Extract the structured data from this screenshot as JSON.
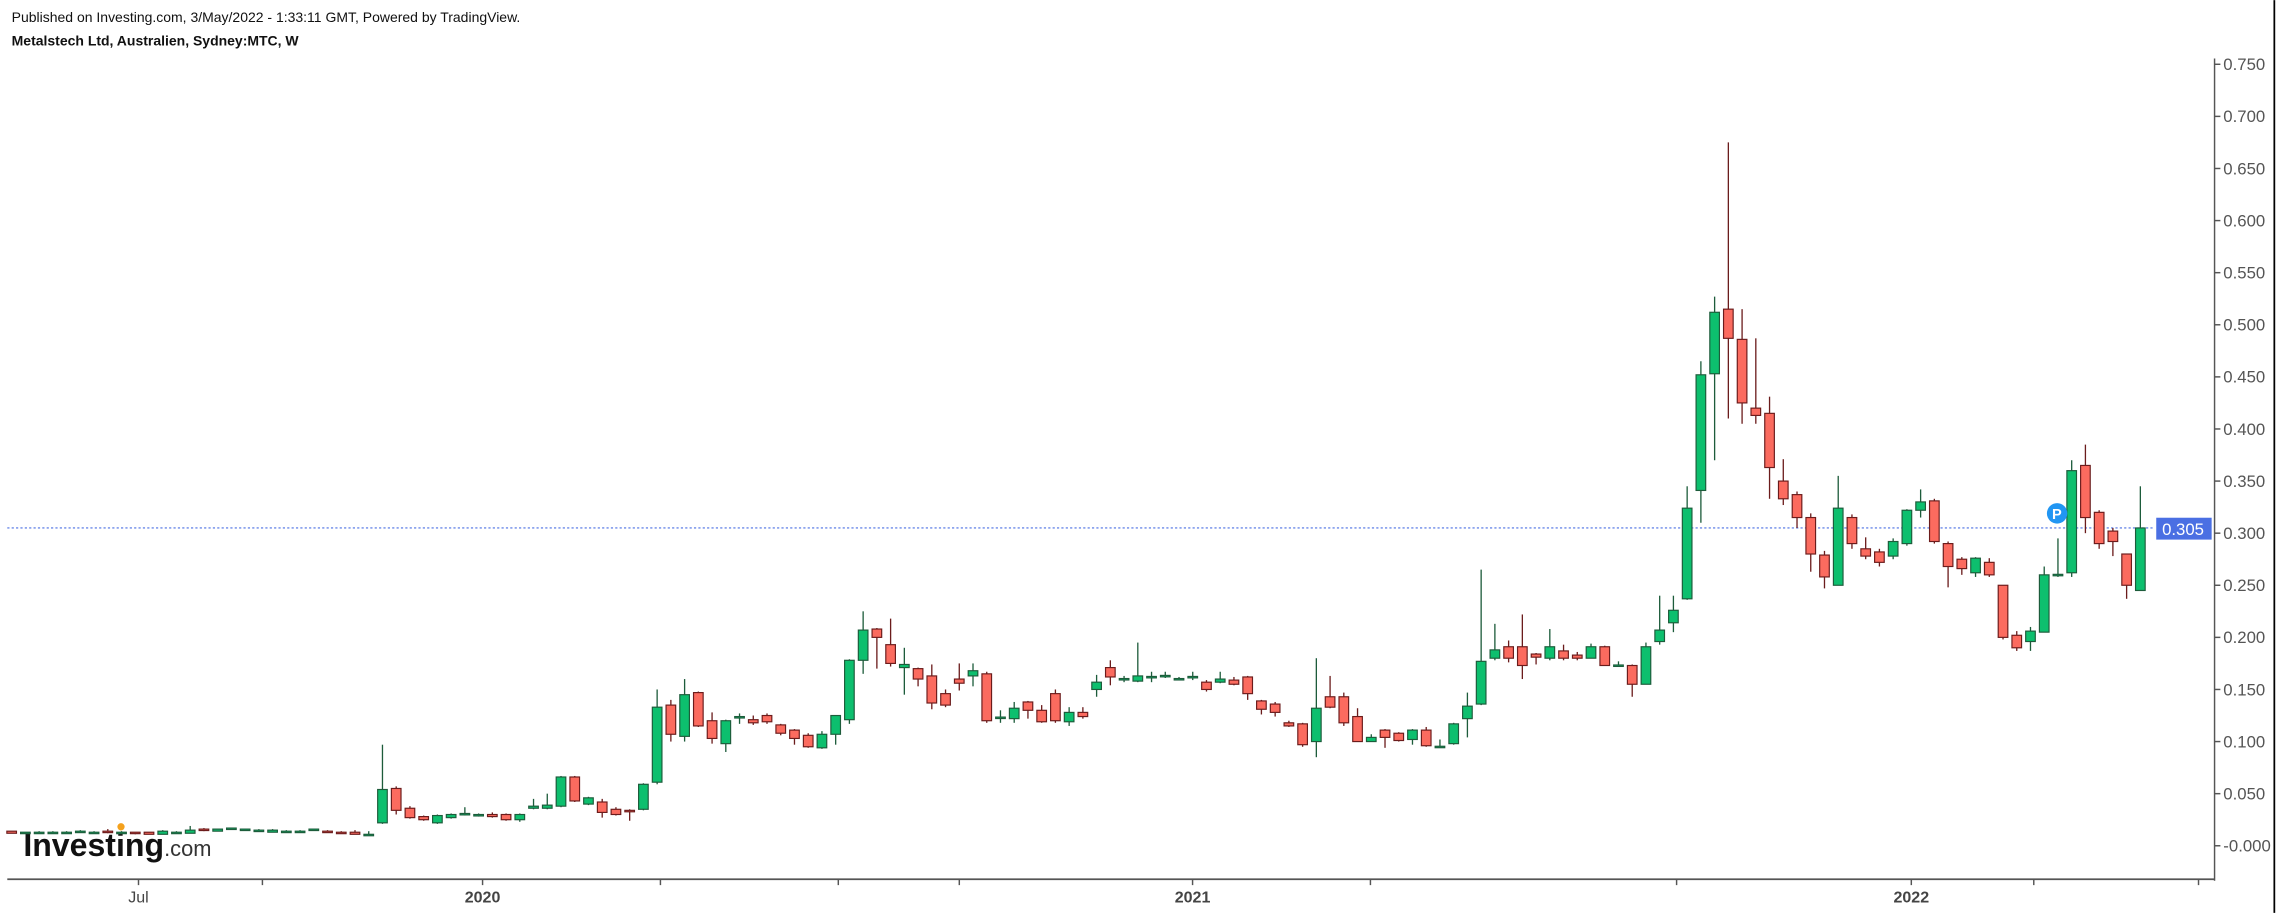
{
  "header": {
    "published": "Published on Investing.com, 3/May/2022 - 1:33:11 GMT, Powered by TradingView.",
    "symbol": "Metalstech Ltd, Australien, Sydney:MTC, W"
  },
  "watermark": {
    "brand": "Investing",
    "suffix": ".com"
  },
  "colors": {
    "up": "#0dbf6e",
    "down": "#fb6b5f",
    "up_border": "#1d5c3b",
    "down_border": "#6b1c1c",
    "last_price_line": "#4a6fe3"
  },
  "chart_data": {
    "type": "candlestick",
    "title": "Metalstech Ltd, Australien, Sydney:MTC, W",
    "interval": "weekly",
    "ylim": [
      -0.02,
      0.755
    ],
    "y_ticks": [
      "0.750",
      "0.700",
      "0.650",
      "0.600",
      "0.550",
      "0.500",
      "0.450",
      "0.400",
      "0.350",
      "0.300",
      "0.250",
      "0.200",
      "0.150",
      "0.100",
      "0.050",
      "-0.000"
    ],
    "x_tick_labels": [
      "Jul",
      "2020",
      "2021",
      "2022"
    ],
    "last_price": 0.305,
    "last_price_label": "0.305",
    "marker_label": "P",
    "grid": false,
    "ohlc": [
      [
        0.014,
        0.014,
        0.012,
        0.012
      ],
      [
        0.013,
        0.013,
        0.013,
        0.013
      ],
      [
        0.013,
        0.014,
        0.013,
        0.013
      ],
      [
        0.013,
        0.014,
        0.012,
        0.013
      ],
      [
        0.013,
        0.014,
        0.013,
        0.013
      ],
      [
        0.013,
        0.015,
        0.013,
        0.014
      ],
      [
        0.013,
        0.014,
        0.012,
        0.013
      ],
      [
        0.014,
        0.016,
        0.012,
        0.013
      ],
      [
        0.013,
        0.014,
        0.012,
        0.013
      ],
      [
        0.013,
        0.013,
        0.011,
        0.012
      ],
      [
        0.013,
        0.013,
        0.011,
        0.011
      ],
      [
        0.011,
        0.015,
        0.011,
        0.014
      ],
      [
        0.013,
        0.014,
        0.013,
        0.013
      ],
      [
        0.012,
        0.019,
        0.012,
        0.015
      ],
      [
        0.016,
        0.017,
        0.014,
        0.015
      ],
      [
        0.014,
        0.016,
        0.014,
        0.016
      ],
      [
        0.016,
        0.017,
        0.016,
        0.017
      ],
      [
        0.015,
        0.016,
        0.015,
        0.016
      ],
      [
        0.015,
        0.016,
        0.015,
        0.015
      ],
      [
        0.013,
        0.016,
        0.013,
        0.015
      ],
      [
        0.014,
        0.015,
        0.014,
        0.014
      ],
      [
        0.014,
        0.015,
        0.013,
        0.014
      ],
      [
        0.015,
        0.016,
        0.015,
        0.016
      ],
      [
        0.014,
        0.015,
        0.013,
        0.013
      ],
      [
        0.013,
        0.014,
        0.012,
        0.012
      ],
      [
        0.013,
        0.015,
        0.011,
        0.011
      ],
      [
        0.011,
        0.014,
        0.01,
        0.011
      ],
      [
        0.022,
        0.097,
        0.021,
        0.054
      ],
      [
        0.055,
        0.057,
        0.03,
        0.034
      ],
      [
        0.036,
        0.038,
        0.026,
        0.027
      ],
      [
        0.028,
        0.029,
        0.024,
        0.025
      ],
      [
        0.022,
        0.03,
        0.021,
        0.029
      ],
      [
        0.027,
        0.031,
        0.026,
        0.03
      ],
      [
        0.03,
        0.037,
        0.029,
        0.031
      ],
      [
        0.029,
        0.031,
        0.028,
        0.03
      ],
      [
        0.03,
        0.032,
        0.027,
        0.028
      ],
      [
        0.03,
        0.031,
        0.024,
        0.025
      ],
      [
        0.025,
        0.031,
        0.023,
        0.03
      ],
      [
        0.036,
        0.045,
        0.035,
        0.038
      ],
      [
        0.036,
        0.05,
        0.035,
        0.039
      ],
      [
        0.038,
        0.067,
        0.037,
        0.066
      ],
      [
        0.066,
        0.067,
        0.042,
        0.043
      ],
      [
        0.04,
        0.047,
        0.039,
        0.046
      ],
      [
        0.042,
        0.045,
        0.027,
        0.032
      ],
      [
        0.035,
        0.037,
        0.029,
        0.03
      ],
      [
        0.034,
        0.035,
        0.024,
        0.033
      ],
      [
        0.035,
        0.06,
        0.034,
        0.059
      ],
      [
        0.061,
        0.15,
        0.059,
        0.133
      ],
      [
        0.135,
        0.14,
        0.1,
        0.107
      ],
      [
        0.105,
        0.16,
        0.1,
        0.145
      ],
      [
        0.147,
        0.148,
        0.114,
        0.115
      ],
      [
        0.12,
        0.128,
        0.098,
        0.103
      ],
      [
        0.098,
        0.121,
        0.09,
        0.12
      ],
      [
        0.123,
        0.127,
        0.117,
        0.124
      ],
      [
        0.121,
        0.125,
        0.116,
        0.118
      ],
      [
        0.125,
        0.127,
        0.117,
        0.119
      ],
      [
        0.116,
        0.117,
        0.106,
        0.108
      ],
      [
        0.111,
        0.112,
        0.097,
        0.103
      ],
      [
        0.106,
        0.108,
        0.094,
        0.095
      ],
      [
        0.094,
        0.11,
        0.093,
        0.107
      ],
      [
        0.107,
        0.125,
        0.097,
        0.125
      ],
      [
        0.121,
        0.179,
        0.117,
        0.178
      ],
      [
        0.178,
        0.225,
        0.165,
        0.207
      ],
      [
        0.208,
        0.209,
        0.17,
        0.2
      ],
      [
        0.193,
        0.218,
        0.172,
        0.175
      ],
      [
        0.171,
        0.19,
        0.145,
        0.174
      ],
      [
        0.17,
        0.171,
        0.153,
        0.16
      ],
      [
        0.163,
        0.174,
        0.131,
        0.137
      ],
      [
        0.146,
        0.15,
        0.133,
        0.135
      ],
      [
        0.16,
        0.175,
        0.149,
        0.156
      ],
      [
        0.163,
        0.175,
        0.153,
        0.168
      ],
      [
        0.165,
        0.167,
        0.118,
        0.12
      ],
      [
        0.123,
        0.13,
        0.118,
        0.1235
      ],
      [
        0.122,
        0.138,
        0.118,
        0.132
      ],
      [
        0.138,
        0.139,
        0.122,
        0.13
      ],
      [
        0.13,
        0.135,
        0.118,
        0.119
      ],
      [
        0.146,
        0.15,
        0.118,
        0.12
      ],
      [
        0.119,
        0.133,
        0.115,
        0.128
      ],
      [
        0.128,
        0.133,
        0.122,
        0.124
      ],
      [
        0.15,
        0.164,
        0.143,
        0.157
      ],
      [
        0.171,
        0.178,
        0.154,
        0.162
      ],
      [
        0.16,
        0.163,
        0.157,
        0.1605
      ],
      [
        0.158,
        0.195,
        0.157,
        0.163
      ],
      [
        0.162,
        0.167,
        0.157,
        0.1625
      ],
      [
        0.163,
        0.167,
        0.161,
        0.1635
      ],
      [
        0.16,
        0.162,
        0.16,
        0.1605
      ],
      [
        0.162,
        0.167,
        0.159,
        0.1625
      ],
      [
        0.157,
        0.159,
        0.148,
        0.15
      ],
      [
        0.157,
        0.167,
        0.156,
        0.16
      ],
      [
        0.159,
        0.162,
        0.154,
        0.155
      ],
      [
        0.162,
        0.163,
        0.14,
        0.146
      ],
      [
        0.139,
        0.14,
        0.126,
        0.131
      ],
      [
        0.136,
        0.138,
        0.124,
        0.128
      ],
      [
        0.118,
        0.12,
        0.114,
        0.115
      ],
      [
        0.117,
        0.118,
        0.095,
        0.097
      ],
      [
        0.1,
        0.18,
        0.085,
        0.132
      ],
      [
        0.143,
        0.163,
        0.132,
        0.133
      ],
      [
        0.143,
        0.147,
        0.115,
        0.118
      ],
      [
        0.124,
        0.132,
        0.1,
        0.1
      ],
      [
        0.1,
        0.107,
        0.1,
        0.104
      ],
      [
        0.111,
        0.112,
        0.094,
        0.104
      ],
      [
        0.108,
        0.109,
        0.1,
        0.101
      ],
      [
        0.102,
        0.112,
        0.097,
        0.111
      ],
      [
        0.111,
        0.114,
        0.095,
        0.096
      ],
      [
        0.095,
        0.102,
        0.095,
        0.0955
      ],
      [
        0.098,
        0.118,
        0.097,
        0.117
      ],
      [
        0.122,
        0.147,
        0.104,
        0.134
      ],
      [
        0.136,
        0.265,
        0.135,
        0.177
      ],
      [
        0.18,
        0.213,
        0.178,
        0.188
      ],
      [
        0.191,
        0.197,
        0.176,
        0.18
      ],
      [
        0.191,
        0.222,
        0.16,
        0.173
      ],
      [
        0.184,
        0.185,
        0.174,
        0.181
      ],
      [
        0.18,
        0.208,
        0.178,
        0.191
      ],
      [
        0.187,
        0.193,
        0.178,
        0.18
      ],
      [
        0.183,
        0.186,
        0.178,
        0.18
      ],
      [
        0.18,
        0.194,
        0.18,
        0.191
      ],
      [
        0.191,
        0.192,
        0.173,
        0.173
      ],
      [
        0.173,
        0.177,
        0.172,
        0.1735
      ],
      [
        0.173,
        0.174,
        0.143,
        0.155
      ],
      [
        0.155,
        0.195,
        0.155,
        0.191
      ],
      [
        0.196,
        0.24,
        0.193,
        0.207
      ],
      [
        0.214,
        0.24,
        0.205,
        0.226
      ],
      [
        0.237,
        0.345,
        0.236,
        0.324
      ],
      [
        0.341,
        0.465,
        0.31,
        0.452
      ],
      [
        0.453,
        0.527,
        0.37,
        0.512
      ],
      [
        0.515,
        0.675,
        0.41,
        0.487
      ],
      [
        0.486,
        0.515,
        0.405,
        0.425
      ],
      [
        0.42,
        0.487,
        0.405,
        0.413
      ],
      [
        0.415,
        0.431,
        0.333,
        0.363
      ],
      [
        0.35,
        0.371,
        0.327,
        0.333
      ],
      [
        0.337,
        0.34,
        0.305,
        0.315
      ],
      [
        0.315,
        0.319,
        0.263,
        0.28
      ],
      [
        0.279,
        0.283,
        0.247,
        0.258
      ],
      [
        0.25,
        0.355,
        0.25,
        0.324
      ],
      [
        0.315,
        0.318,
        0.285,
        0.29
      ],
      [
        0.285,
        0.296,
        0.275,
        0.278
      ],
      [
        0.282,
        0.285,
        0.268,
        0.272
      ],
      [
        0.278,
        0.295,
        0.275,
        0.292
      ],
      [
        0.29,
        0.323,
        0.288,
        0.322
      ],
      [
        0.322,
        0.342,
        0.315,
        0.33
      ],
      [
        0.331,
        0.333,
        0.29,
        0.292
      ],
      [
        0.29,
        0.292,
        0.248,
        0.268
      ],
      [
        0.275,
        0.277,
        0.26,
        0.266
      ],
      [
        0.262,
        0.277,
        0.258,
        0.276
      ],
      [
        0.272,
        0.276,
        0.258,
        0.26
      ],
      [
        0.25,
        0.25,
        0.198,
        0.2
      ],
      [
        0.202,
        0.206,
        0.187,
        0.19
      ],
      [
        0.196,
        0.21,
        0.187,
        0.206
      ],
      [
        0.205,
        0.268,
        0.205,
        0.26
      ],
      [
        0.26,
        0.295,
        0.258,
        0.2605
      ],
      [
        0.262,
        0.37,
        0.258,
        0.36
      ],
      [
        0.365,
        0.385,
        0.3,
        0.315
      ],
      [
        0.32,
        0.322,
        0.285,
        0.29
      ],
      [
        0.302,
        0.305,
        0.278,
        0.292
      ],
      [
        0.28,
        0.28,
        0.237,
        0.25
      ],
      [
        0.245,
        0.345,
        0.245,
        0.305
      ]
    ]
  }
}
